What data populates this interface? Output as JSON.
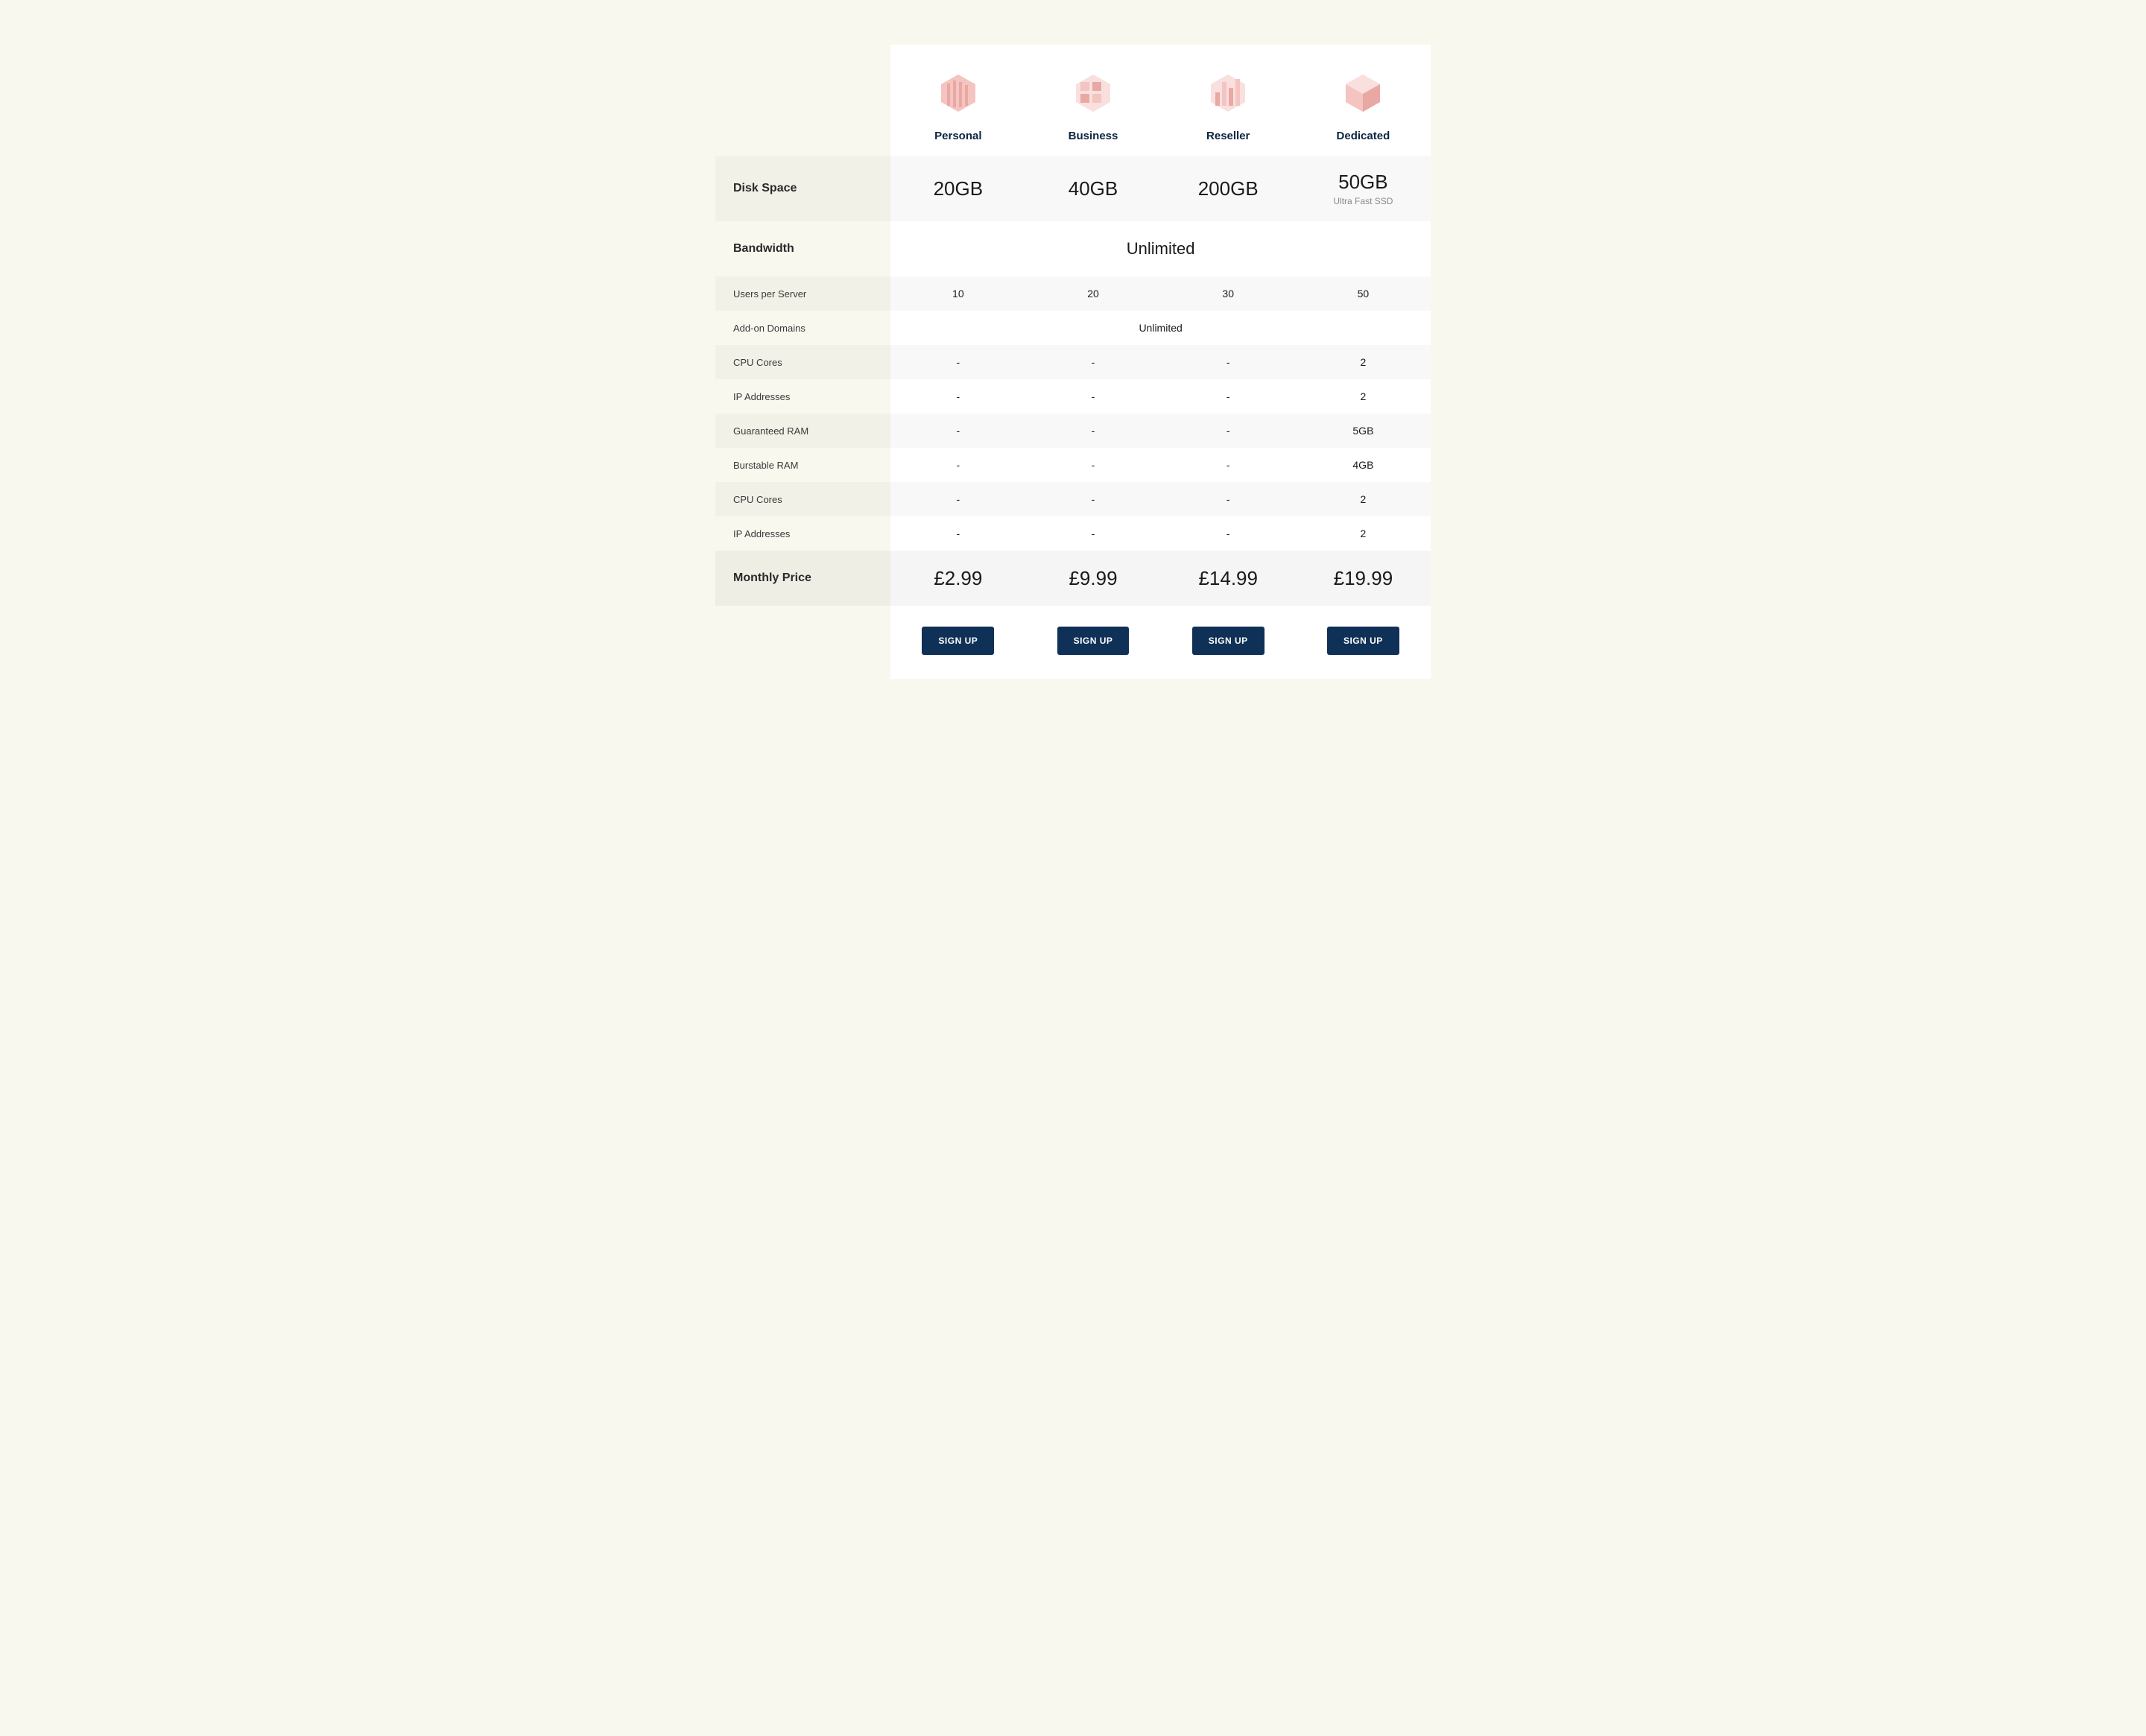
{
  "colors": {
    "page_bg": "#f9f8ef",
    "panel_bg": "#ffffff",
    "row_shade": "rgba(0,0,0,0.028)",
    "text_dark": "#1a1a1a",
    "heading_navy": "#0a2540",
    "subtext_gray": "#888888",
    "button_bg": "#0f3057",
    "button_text": "#ffffff",
    "icon_tint": "#e8a8a4"
  },
  "plans": [
    {
      "id": "personal",
      "name": "Personal",
      "icon": "hex-stripes",
      "signup": "SIGN UP"
    },
    {
      "id": "business",
      "name": "Business",
      "icon": "hex-blocks",
      "signup": "SIGN UP"
    },
    {
      "id": "reseller",
      "name": "Reseller",
      "icon": "hex-bars",
      "signup": "SIGN UP"
    },
    {
      "id": "dedicated",
      "name": "Dedicated",
      "icon": "hex-cube",
      "signup": "SIGN UP"
    }
  ],
  "rows": [
    {
      "label": "Disk Space",
      "size": "large",
      "shade": true,
      "values": [
        "20GB",
        "40GB",
        "200GB",
        "50GB"
      ],
      "subtext": [
        null,
        null,
        null,
        "Ultra Fast SSD"
      ]
    },
    {
      "label": "Bandwidth",
      "size": "large",
      "shade": false,
      "span": "Unlimited"
    },
    {
      "label": "Users per Server",
      "size": "small",
      "shade": true,
      "values": [
        "10",
        "20",
        "30",
        "50"
      ]
    },
    {
      "label": "Add-on Domains",
      "size": "small",
      "shade": false,
      "span": "Unlimited"
    },
    {
      "label": "CPU Cores",
      "size": "small",
      "shade": true,
      "values": [
        "-",
        "-",
        "-",
        "2"
      ]
    },
    {
      "label": "IP Addresses",
      "size": "small",
      "shade": false,
      "values": [
        "-",
        "-",
        "-",
        "2"
      ]
    },
    {
      "label": "Guaranteed RAM",
      "size": "small",
      "shade": true,
      "values": [
        "-",
        "-",
        "-",
        "5GB"
      ]
    },
    {
      "label": "Burstable RAM",
      "size": "small",
      "shade": false,
      "values": [
        "-",
        "-",
        "-",
        "4GB"
      ]
    },
    {
      "label": "CPU Cores",
      "size": "small",
      "shade": true,
      "values": [
        "-",
        "-",
        "-",
        "2"
      ]
    },
    {
      "label": "IP Addresses",
      "size": "small",
      "shade": false,
      "values": [
        "-",
        "-",
        "-",
        "2"
      ]
    },
    {
      "label": "Monthly Price",
      "size": "large",
      "shade": true,
      "shade_strong": true,
      "values": [
        "£2.99",
        "£9.99",
        "£14.99",
        "£19.99"
      ]
    }
  ]
}
